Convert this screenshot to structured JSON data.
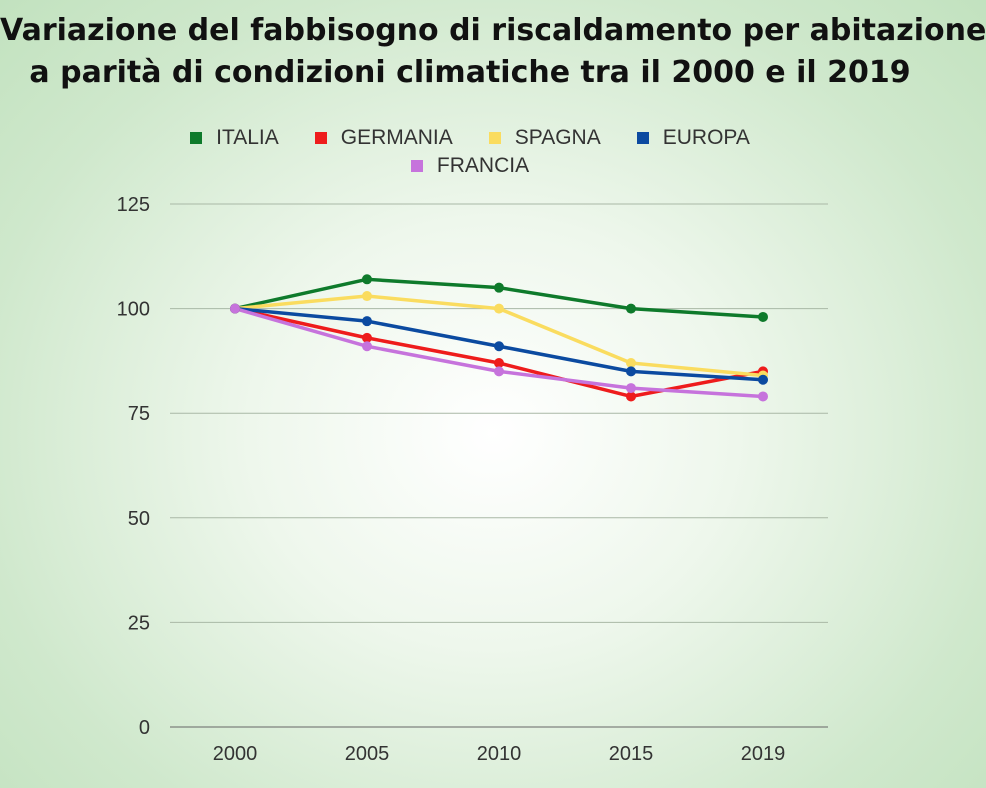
{
  "title_line1": "Variazione del fabbisogno di riscaldamento per abitazione",
  "title_line2": "a parità di condizioni climatiche tra il 2000 e il 2019",
  "chart_data": {
    "type": "line",
    "title": "Variazione del fabbisogno di riscaldamento per abitazione a parità di condizioni climatiche tra il 2000 e il 2019",
    "x": [
      "2000",
      "2005",
      "2010",
      "2015",
      "2019"
    ],
    "ylim": [
      0,
      125
    ],
    "yticks": [
      0,
      25,
      50,
      75,
      100,
      125
    ],
    "grid": true,
    "legend_placement": "top",
    "series": [
      {
        "name": "ITALIA",
        "color": "#0e7a2b",
        "values": [
          100,
          107,
          105,
          100,
          98
        ]
      },
      {
        "name": "GERMANIA",
        "color": "#ee1c1c",
        "values": [
          100,
          93,
          87,
          79,
          85
        ]
      },
      {
        "name": "SPAGNA",
        "color": "#fadc5f",
        "values": [
          100,
          103,
          100,
          87,
          84
        ]
      },
      {
        "name": "EUROPA",
        "color": "#0b4aa0",
        "values": [
          100,
          97,
          91,
          85,
          83
        ]
      },
      {
        "name": "FRANCIA",
        "color": "#c673dc",
        "values": [
          100,
          91,
          85,
          81,
          79
        ]
      }
    ]
  }
}
